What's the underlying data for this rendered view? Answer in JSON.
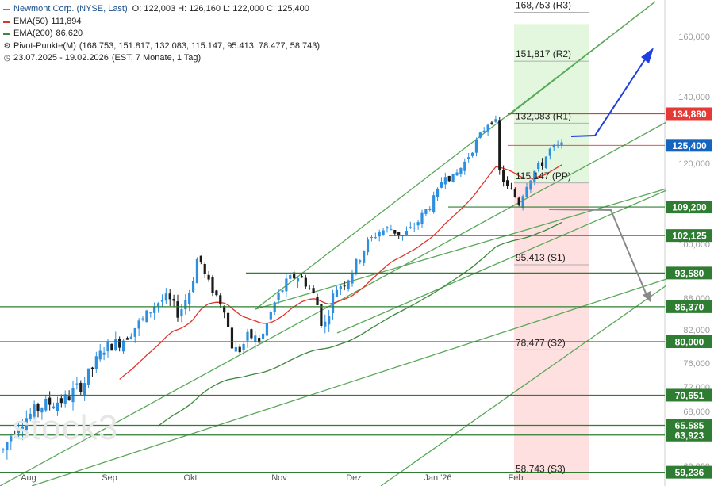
{
  "legend": {
    "title": "Newmont Corp. (NYSE, Last)",
    "ohlc": "O: 122,003  H: 126,160  L: 122,000  C: 125,400",
    "ema50_label": "EMA(50)",
    "ema50_value": "111,894",
    "ema200_label": "EMA(200)",
    "ema200_value": "86,620",
    "pivot_label": "Pivot-Punkte(M)",
    "pivot_values": "(168.753, 151.817, 132.083, 115.147, 95.413, 78.477, 58.743)",
    "range_label": "23.07.2025 - 19.02.2026",
    "range_detail": "(EST, 7 Monate, 1 Tag)",
    "icons": {
      "pivot": "gear-icon",
      "range": "clock-icon"
    }
  },
  "watermark": "stock3",
  "chart_data": {
    "type": "candlestick",
    "title": "Newmont Corp. (NYSE, Last)",
    "ylim": [
      58,
      172
    ],
    "y_ticks": [
      {
        "value": 60,
        "label": "60,000"
      },
      {
        "value": 64,
        "label": "64,000"
      },
      {
        "value": 68,
        "label": "68,000"
      },
      {
        "value": 72,
        "label": "72,000"
      },
      {
        "value": 76,
        "label": "76,000"
      },
      {
        "value": 80,
        "label": "80,000"
      },
      {
        "value": 82,
        "label": "82,000"
      },
      {
        "value": 88,
        "label": "88,000"
      },
      {
        "value": 100,
        "label": "100,000"
      },
      {
        "value": 120,
        "label": "120,000"
      },
      {
        "value": 140,
        "label": "140,000"
      },
      {
        "value": 160,
        "label": "160,000"
      }
    ],
    "x_ticks": [
      "Aug",
      "Sep",
      "Okt",
      "Nov",
      "Dez",
      "Jan '26",
      "Feb"
    ],
    "last_price": {
      "value": 125.4,
      "label": "125,400"
    },
    "pivots": [
      {
        "name": "R3",
        "value": 168.753,
        "label": "168,753 (R3)"
      },
      {
        "name": "R2",
        "value": 151.817,
        "label": "151,817 (R2)"
      },
      {
        "name": "R1",
        "value": 132.083,
        "label": "132,083 (R1)"
      },
      {
        "name": "PP",
        "value": 115.147,
        "label": "115,147 (PP)"
      },
      {
        "name": "S1",
        "value": 95.413,
        "label": "95,413 (S1)"
      },
      {
        "name": "S2",
        "value": 78.477,
        "label": "78,477 (S2)"
      },
      {
        "name": "S3",
        "value": 58.743,
        "label": "58,743 (S3)"
      }
    ],
    "levels": [
      {
        "value": 134.88,
        "label": "134,880",
        "kind": "resistance"
      },
      {
        "value": 109.2,
        "label": "109,200",
        "kind": "support"
      },
      {
        "value": 102.125,
        "label": "102,125",
        "kind": "support"
      },
      {
        "value": 93.58,
        "label": "93,580",
        "kind": "support"
      },
      {
        "value": 86.37,
        "label": "86,370",
        "kind": "support"
      },
      {
        "value": 80.0,
        "label": "80,000",
        "kind": "support"
      },
      {
        "value": 70.651,
        "label": "70,651",
        "kind": "support"
      },
      {
        "value": 65.585,
        "label": "65,585",
        "kind": "support"
      },
      {
        "value": 63.923,
        "label": "63,923",
        "kind": "support"
      },
      {
        "value": 59.236,
        "label": "59,236",
        "kind": "support"
      }
    ],
    "colors": {
      "up": "#2d8fe0",
      "down": "#1a1a1a",
      "ema50": "#e0352b",
      "ema200": "#3b8a3b",
      "trend": "#5aa85a",
      "level": "#2e7d32",
      "resistance": "#e53935",
      "price_label": "#1565c0",
      "arrow_up": "#1f3fe0",
      "arrow_down": "#8a8a8a",
      "zone_up": "#e3f7df",
      "zone_down": "#fde0df"
    },
    "candles_summary": "daily candles 23.07.2025 - 19.02.2026, close rising from about 62 to 125.4"
  }
}
